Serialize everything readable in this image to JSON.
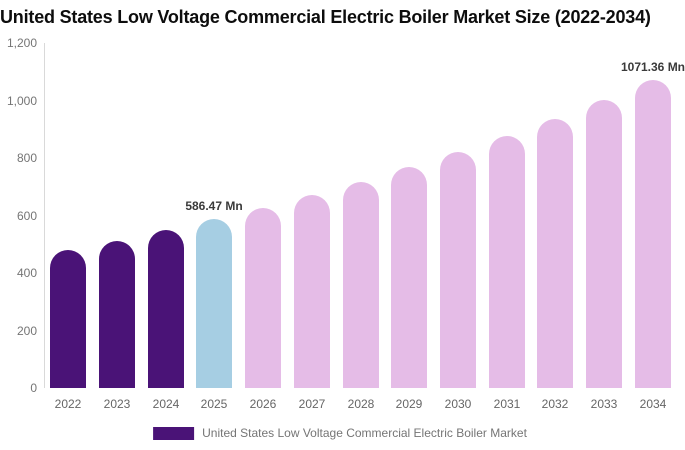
{
  "title": "United States Low Voltage Commercial Electric Boiler Market Size (2022-2034)",
  "colors": {
    "historical": "#4a1377",
    "highlight": "#a6cee3",
    "forecast": "#e5bce7",
    "axis_line": "#d9d9d9",
    "tick_text": "#757575",
    "year_text": "#666666",
    "data_label_text": "#3a3a3a",
    "legend_text": "#757575",
    "title_text": "#0d0d0d",
    "background": "#ffffff"
  },
  "y_axis": {
    "min": 0,
    "max": 1200,
    "ticks": [
      {
        "value": 0,
        "label": "0"
      },
      {
        "value": 200,
        "label": "200"
      },
      {
        "value": 400,
        "label": "400"
      },
      {
        "value": 600,
        "label": "600"
      },
      {
        "value": 800,
        "label": "800"
      },
      {
        "value": 1000,
        "label": "1,000"
      },
      {
        "value": 1200,
        "label": "1,200"
      }
    ]
  },
  "legend": {
    "label": "United States Low Voltage Commercial Electric Boiler Market"
  },
  "chart_data": {
    "type": "bar",
    "title": "United States Low Voltage Commercial Electric Boiler Market Size (2022-2034)",
    "xlabel": "",
    "ylabel": "",
    "unit": "Mn",
    "ylim": [
      0,
      1200
    ],
    "grid": false,
    "legend_position": "bottom",
    "categories": [
      "2022",
      "2023",
      "2024",
      "2025",
      "2026",
      "2027",
      "2028",
      "2029",
      "2030",
      "2031",
      "2032",
      "2033",
      "2034"
    ],
    "values": [
      479,
      512,
      548,
      586.47,
      627,
      671,
      717,
      767,
      820,
      877,
      937,
      1002,
      1071.36
    ],
    "points": [
      {
        "year": "2022",
        "value": 479,
        "role": "historical"
      },
      {
        "year": "2023",
        "value": 512,
        "role": "historical"
      },
      {
        "year": "2024",
        "value": 548,
        "role": "historical"
      },
      {
        "year": "2025",
        "value": 586.47,
        "role": "highlight",
        "label": "586.47 Mn"
      },
      {
        "year": "2026",
        "value": 627,
        "role": "forecast"
      },
      {
        "year": "2027",
        "value": 671,
        "role": "forecast"
      },
      {
        "year": "2028",
        "value": 717,
        "role": "forecast"
      },
      {
        "year": "2029",
        "value": 767,
        "role": "forecast"
      },
      {
        "year": "2030",
        "value": 820,
        "role": "forecast"
      },
      {
        "year": "2031",
        "value": 877,
        "role": "forecast"
      },
      {
        "year": "2032",
        "value": 937,
        "role": "forecast"
      },
      {
        "year": "2033",
        "value": 1002,
        "role": "forecast"
      },
      {
        "year": "2034",
        "value": 1071.36,
        "role": "forecast",
        "label": "1071.36 Mn"
      }
    ]
  }
}
